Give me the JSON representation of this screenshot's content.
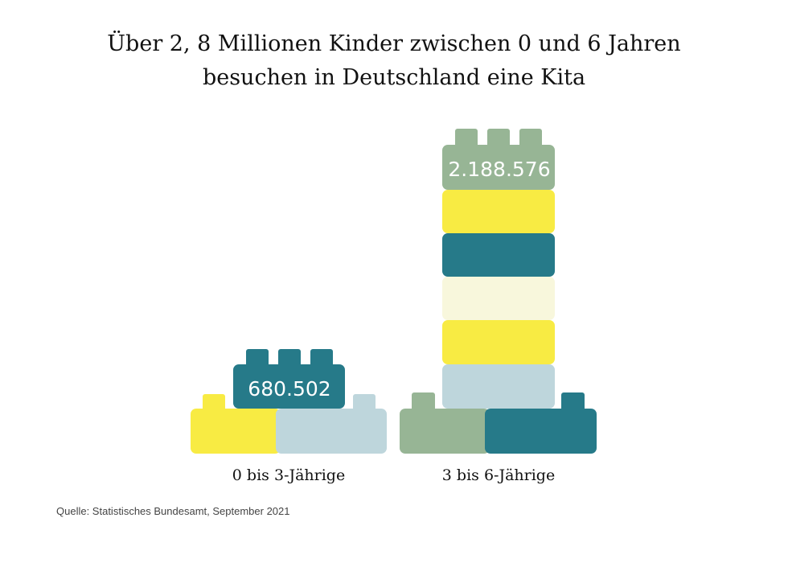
{
  "title": {
    "line1": "Über 2, 8 Millionen Kinder zwischen 0 und 6 Jahren",
    "line2": "besuchen in Deutschland eine Kita"
  },
  "source": "Quelle: Statistisches Bundesamt, September 2021",
  "colors": {
    "yellow": "#f8eb43",
    "lightblue": "#bed6dc",
    "teal": "#267a89",
    "sage": "#97b595",
    "cream": "#f8f7dc",
    "label_text": "#ffffff"
  },
  "chart_data": {
    "type": "bar",
    "title": "Über 2, 8 Millionen Kinder zwischen 0 und 6 Jahren besuchen in Deutschland eine Kita",
    "xlabel": "",
    "ylabel": "",
    "categories": [
      "0 bis 3-Jährige",
      "3 bis 6-Jährige"
    ],
    "values": [
      680502,
      2188576
    ],
    "value_labels": [
      "680.502",
      "2.188.576"
    ],
    "style": "stacked toy bricks",
    "grid": false,
    "legend": "none"
  }
}
